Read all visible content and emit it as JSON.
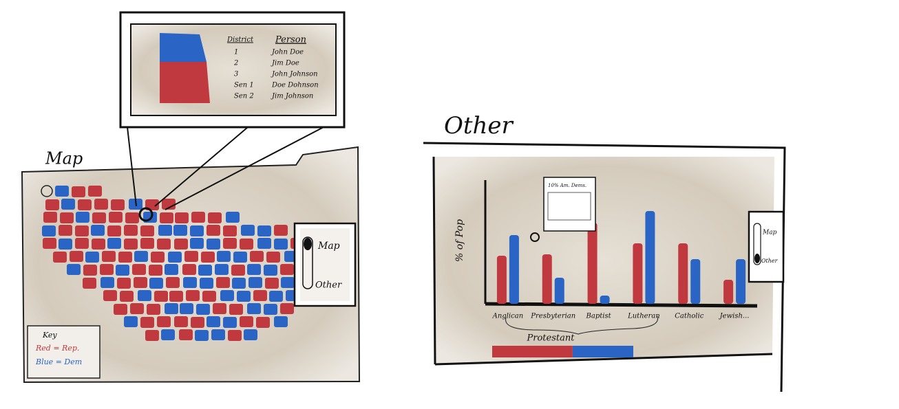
{
  "map_panel": {
    "title": "Map",
    "popup": {
      "headers": [
        "District",
        "Person"
      ],
      "rows": [
        [
          "1",
          "John Doe"
        ],
        [
          "2",
          "Jim Doe"
        ],
        [
          "3",
          "John Johnson"
        ],
        [
          "Sen 1",
          "Doe Dohnson"
        ],
        [
          "Sen 2",
          "Jim Johnson"
        ]
      ]
    },
    "key": {
      "title": "Key",
      "items": [
        "Red = Rep.",
        "Blue = Dem"
      ]
    },
    "toggle": [
      "Map",
      "Other"
    ]
  },
  "other_panel": {
    "title": "Other",
    "toggle": [
      "Map",
      "Other"
    ],
    "popup_title": "10% Am. Dems.",
    "chart_data": {
      "type": "bar",
      "ylabel": "% of Pop",
      "categories": [
        "Anglican",
        "Presbyterian",
        "Baptist",
        "Lutheran",
        "Catholic",
        "Jewish..."
      ],
      "ylim": [
        0,
        180
      ],
      "series": [
        {
          "name": "Rep",
          "color": "#c0393f",
          "values": [
            70,
            72,
            118,
            88,
            88,
            35
          ]
        },
        {
          "name": "Dem",
          "color": "#2a64c4",
          "values": [
            100,
            38,
            12,
            135,
            65,
            65
          ]
        }
      ],
      "group_label": "Protestant",
      "group_split": {
        "xlim": [
          0,
          100
        ],
        "values": [
          57,
          43
        ]
      }
    }
  }
}
